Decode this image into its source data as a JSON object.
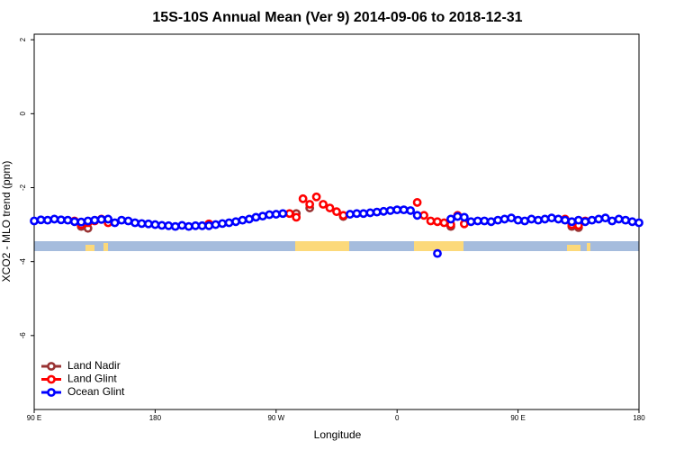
{
  "chart_data": {
    "type": "scatter",
    "title": "15S-10S Annual Mean (Ver 9)   2014-09-06 to 2018-12-31",
    "x_label": "Longitude",
    "y_label": "XCO2 - MLO trend (ppm)",
    "xlim": [
      90,
      540
    ],
    "ylim": [
      -8.0,
      2.15
    ],
    "xticks": [
      {
        "value": 90,
        "label": "90 E"
      },
      180,
      {
        "value": 270,
        "label": "90 W"
      },
      {
        "value": 360,
        "label": "0"
      },
      {
        "value": 450,
        "label": "90 E"
      },
      {
        "value": 540,
        "label": "180"
      }
    ],
    "yticks": [
      2,
      0,
      -2,
      -4,
      -6
    ],
    "legend": "bottom-left",
    "series": [
      {
        "name": "Land Nadir",
        "color": "#993333",
        "x": [
          125,
          130,
          285,
          295,
          320,
          400,
          490,
          495
        ],
        "values": [
          -3.05,
          -3.1,
          -2.7,
          -2.55,
          -2.78,
          -3.05,
          -3.05,
          -3.08
        ]
      },
      {
        "name": "Land Glint",
        "color": "#ff0000",
        "x": [
          120,
          125,
          130,
          135,
          140,
          145,
          220,
          280,
          285,
          290,
          295,
          300,
          305,
          310,
          315,
          320,
          375,
          380,
          385,
          390,
          395,
          400,
          405,
          410,
          485,
          490,
          495,
          500
        ],
        "values": [
          -2.9,
          -3.0,
          -2.95,
          -2.9,
          -2.85,
          -2.95,
          -2.98,
          -2.7,
          -2.8,
          -2.3,
          -2.45,
          -2.25,
          -2.45,
          -2.55,
          -2.65,
          -2.75,
          -2.4,
          -2.75,
          -2.9,
          -2.92,
          -2.95,
          -3.0,
          -2.75,
          -2.98,
          -2.85,
          -3.0,
          -3.02,
          -2.9
        ]
      },
      {
        "name": "Ocean Glint",
        "color": "#0000ff",
        "x": [
          90,
          95,
          100,
          105,
          110,
          115,
          120,
          125,
          130,
          135,
          140,
          145,
          150,
          155,
          160,
          165,
          170,
          175,
          180,
          185,
          190,
          195,
          200,
          205,
          210,
          215,
          220,
          225,
          230,
          235,
          240,
          245,
          250,
          255,
          260,
          265,
          270,
          275,
          325,
          330,
          335,
          340,
          345,
          350,
          355,
          360,
          365,
          370,
          375,
          390,
          400,
          405,
          410,
          415,
          420,
          425,
          430,
          435,
          440,
          445,
          450,
          455,
          460,
          465,
          470,
          475,
          480,
          485,
          490,
          495,
          500,
          505,
          510,
          515,
          520,
          525,
          530,
          535,
          540
        ],
        "values": [
          -2.9,
          -2.87,
          -2.88,
          -2.85,
          -2.87,
          -2.88,
          -2.92,
          -2.93,
          -2.9,
          -2.88,
          -2.86,
          -2.85,
          -2.95,
          -2.88,
          -2.9,
          -2.95,
          -2.97,
          -2.98,
          -3.0,
          -3.02,
          -3.03,
          -3.05,
          -3.02,
          -3.05,
          -3.03,
          -3.03,
          -3.03,
          -3.0,
          -2.97,
          -2.95,
          -2.92,
          -2.88,
          -2.85,
          -2.8,
          -2.77,
          -2.73,
          -2.72,
          -2.7,
          -2.72,
          -2.7,
          -2.7,
          -2.68,
          -2.66,
          -2.64,
          -2.62,
          -2.6,
          -2.6,
          -2.62,
          -2.75,
          -3.78,
          -2.85,
          -2.78,
          -2.8,
          -2.92,
          -2.9,
          -2.9,
          -2.92,
          -2.88,
          -2.85,
          -2.82,
          -2.88,
          -2.9,
          -2.85,
          -2.88,
          -2.85,
          -2.82,
          -2.85,
          -2.88,
          -2.92,
          -2.88,
          -2.92,
          -2.88,
          -2.85,
          -2.82,
          -2.9,
          -2.85,
          -2.88,
          -2.92,
          -2.95
        ]
      }
    ]
  }
}
